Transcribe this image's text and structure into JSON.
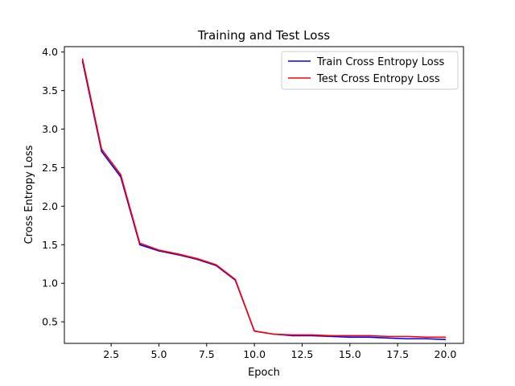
{
  "chart_data": {
    "type": "line",
    "title": "Training and Test Loss",
    "xlabel": "Epoch",
    "ylabel": "Cross Entropy Loss",
    "xlim": [
      0.05,
      20.95
    ],
    "ylim": [
      0.22,
      4.07
    ],
    "xticks": [
      2.5,
      5.0,
      7.5,
      10.0,
      12.5,
      15.0,
      17.5,
      20.0
    ],
    "xtick_labels": [
      "2.5",
      "5.0",
      "7.5",
      "10.0",
      "12.5",
      "15.0",
      "17.5",
      "20.0"
    ],
    "yticks": [
      0.5,
      1.0,
      1.5,
      2.0,
      2.5,
      3.0,
      3.5,
      4.0
    ],
    "ytick_labels": [
      "0.5",
      "1.0",
      "1.5",
      "2.0",
      "2.5",
      "3.0",
      "3.5",
      "4.0"
    ],
    "grid": false,
    "legend_position": "top-right",
    "x": [
      1,
      2,
      3,
      4,
      5,
      6,
      7,
      8,
      9,
      10,
      11,
      12,
      13,
      14,
      15,
      16,
      17,
      18,
      19,
      20
    ],
    "series": [
      {
        "name": "Train Cross Entropy Loss",
        "color": "#0000ff",
        "values": [
          3.88,
          2.71,
          2.38,
          1.5,
          1.42,
          1.37,
          1.31,
          1.23,
          1.04,
          0.38,
          0.34,
          0.32,
          0.32,
          0.31,
          0.3,
          0.3,
          0.29,
          0.28,
          0.28,
          0.27
        ]
      },
      {
        "name": "Test Cross Entropy Loss",
        "color": "#ff0000",
        "values": [
          3.91,
          2.74,
          2.41,
          1.52,
          1.43,
          1.38,
          1.32,
          1.24,
          1.05,
          0.38,
          0.34,
          0.33,
          0.33,
          0.32,
          0.32,
          0.32,
          0.31,
          0.31,
          0.3,
          0.3
        ]
      }
    ]
  }
}
